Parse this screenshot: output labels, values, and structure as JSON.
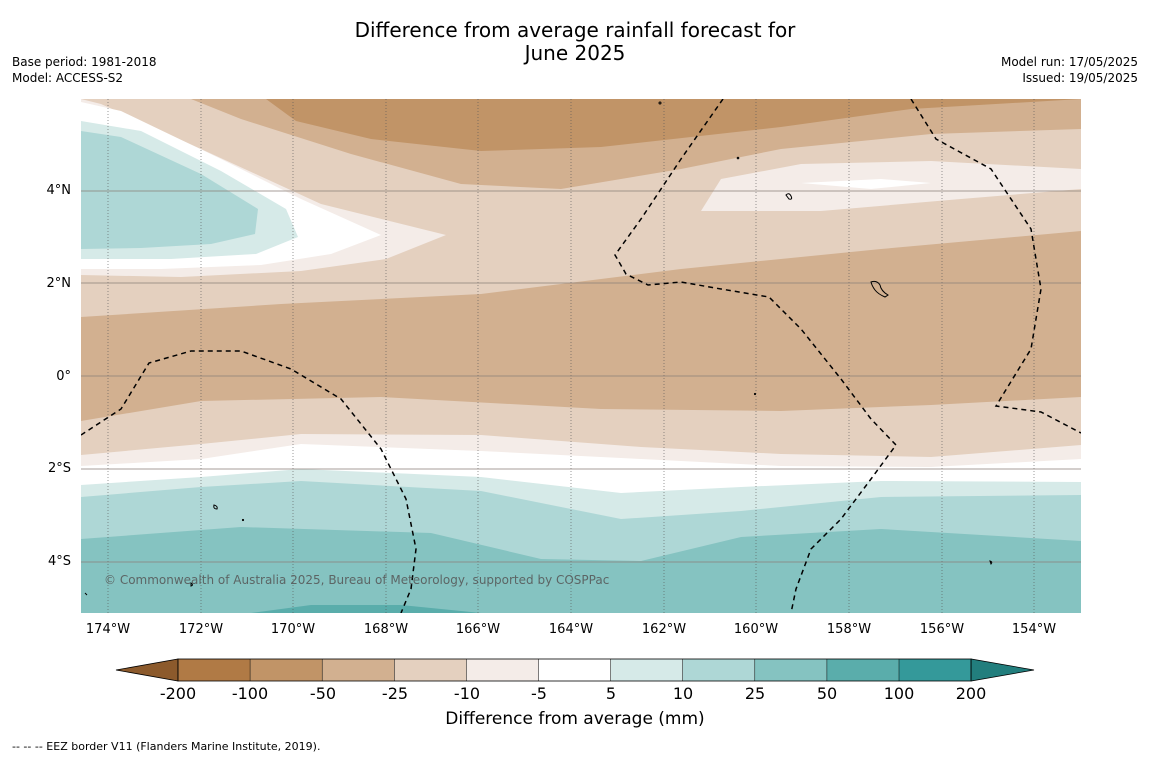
{
  "title_line1": "Difference from average rainfall forecast for",
  "title_line2": "June 2025",
  "base_period": "Base period: 1981-2018",
  "model": "Model: ACCESS-S2",
  "model_run": "Model run: 17/05/2025",
  "issued": "Issued: 19/05/2025",
  "lat_labels": [
    "4°N",
    "2°N",
    "0°",
    "2°S",
    "4°S"
  ],
  "lon_labels": [
    "174°W",
    "172°W",
    "170°W",
    "168°W",
    "166°W",
    "164°W",
    "162°W",
    "160°W",
    "158°W",
    "156°W",
    "154°W"
  ],
  "copyright": "© Commonwealth of Australia 2025, Bureau of Meteorology, supported by COSPPac",
  "colorbar": {
    "ticks": [
      "-200",
      "-100",
      "-50",
      "-25",
      "-10",
      "-5",
      "5",
      "10",
      "25",
      "50",
      "100",
      "200"
    ],
    "colors": [
      "#8c5a2c",
      "#b07a45",
      "#c19467",
      "#d2b090",
      "#e4d0bf",
      "#f4ece8",
      "#ffffff",
      "#d6eae8",
      "#aed7d6",
      "#85c3c1",
      "#5aadab",
      "#34999a",
      "#227e7d"
    ],
    "title": "Difference from average (mm)"
  },
  "footer": "--  --  -- EEZ border V11 (Flanders Marine Institute, 2019)."
}
